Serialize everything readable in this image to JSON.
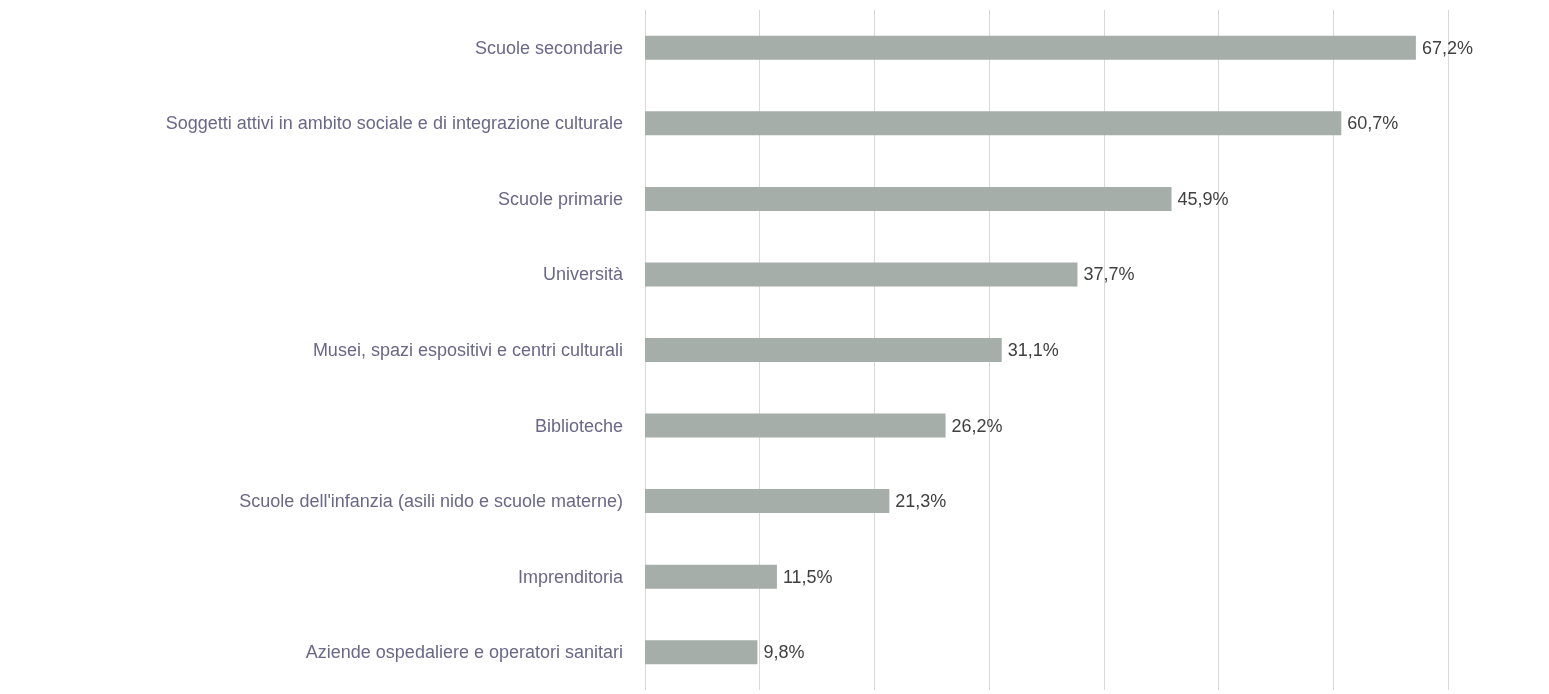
{
  "chart_data": {
    "type": "bar",
    "orientation": "horizontal",
    "categories": [
      "Scuole secondarie",
      "Soggetti attivi in ambito sociale e di integrazione culturale",
      "Scuole primarie",
      "Università",
      "Musei, spazi espositivi e centri culturali",
      "Biblioteche",
      "Scuole dell'infanzia (asili nido e scuole materne)",
      "Imprenditoria",
      "Aziende ospedaliere e operatori sanitari"
    ],
    "values": [
      67.2,
      60.7,
      45.9,
      37.7,
      31.1,
      26.2,
      21.3,
      11.5,
      9.8
    ],
    "value_labels": [
      "67,2%",
      "60,7%",
      "45,9%",
      "37,7%",
      "31,1%",
      "26,2%",
      "21,3%",
      "11,5%",
      "9,8%"
    ],
    "color": "#a5aea8",
    "xlim": [
      0,
      70
    ],
    "xticks": [
      {
        "value": 0,
        "label": null
      },
      {
        "value": 10,
        "label": null
      },
      {
        "value": 20,
        "label": null
      },
      {
        "value": 30,
        "label": null
      },
      {
        "value": 40,
        "label": null
      },
      {
        "value": 50,
        "label": null
      },
      {
        "value": 60,
        "label": null
      },
      {
        "value": 70,
        "label": null
      }
    ],
    "tick_labels": "y",
    "grid": "x"
  }
}
